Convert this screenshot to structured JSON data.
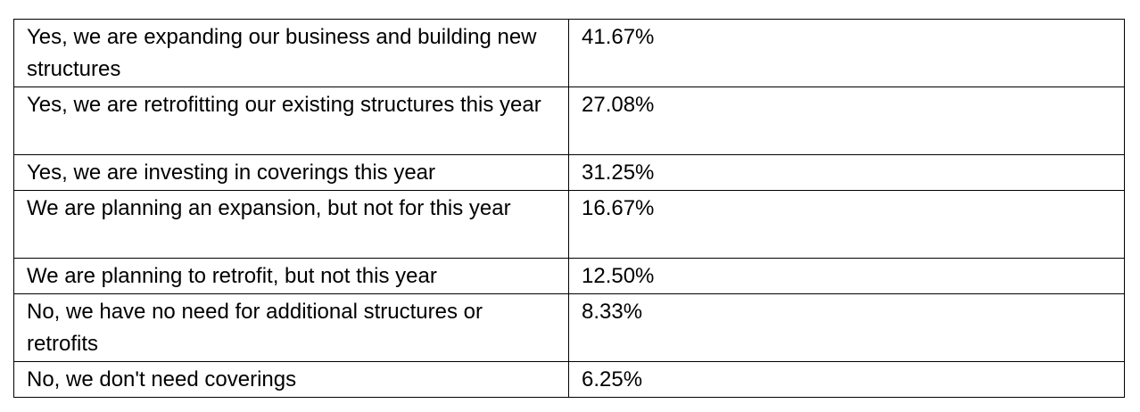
{
  "table": {
    "rows": [
      {
        "answer": "Yes, we are expanding our business and building new structures",
        "percent": "41.67%"
      },
      {
        "answer": "Yes, we are retrofitting our existing structures this year",
        "percent": "27.08%"
      },
      {
        "answer": "Yes, we are investing in coverings this year",
        "percent": "31.25%"
      },
      {
        "answer": "We are planning an expansion, but not for this year",
        "percent": "16.67%"
      },
      {
        "answer": "We are planning to retrofit, but not this year",
        "percent": "12.50%"
      },
      {
        "answer": "No, we have no need for additional structures or retrofits",
        "percent": "8.33%"
      },
      {
        "answer": "No, we don't need coverings",
        "percent": "6.25%"
      }
    ]
  }
}
